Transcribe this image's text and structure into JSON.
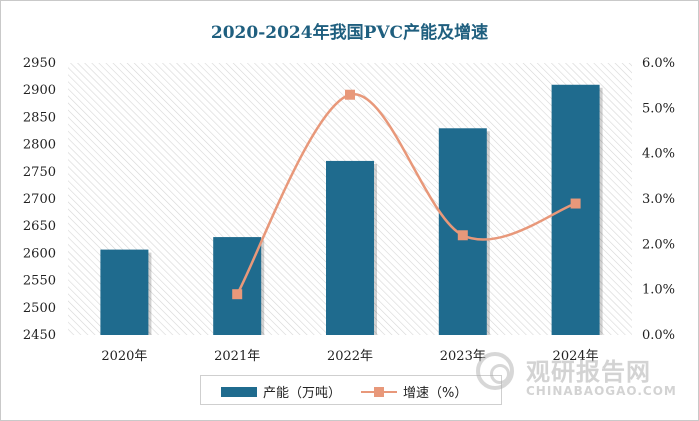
{
  "chart_data": {
    "type": "bar+line",
    "title": "2020-2024年我国PVC产能及增速",
    "categories": [
      "2020年",
      "2021年",
      "2022年",
      "2023年",
      "2024年"
    ],
    "series": [
      {
        "name": "产能（万吨）",
        "type": "bar",
        "axis": "left",
        "color": "#1f6b8e",
        "values": [
          2607,
          2630,
          2770,
          2830,
          2910
        ]
      },
      {
        "name": "增速（%）",
        "type": "line",
        "axis": "right",
        "color": "#e8987a",
        "smooth": true,
        "values": [
          null,
          0.9,
          5.3,
          2.2,
          2.9
        ]
      }
    ],
    "y_left": {
      "min": 2450,
      "max": 2950,
      "step": 50,
      "ticks": [
        "2450",
        "2500",
        "2550",
        "2600",
        "2650",
        "2700",
        "2750",
        "2800",
        "2850",
        "2900",
        "2950"
      ]
    },
    "y_right": {
      "min": 0,
      "max": 6,
      "step": 1,
      "ticks": [
        "0.0%",
        "1.0%",
        "2.0%",
        "3.0%",
        "4.0%",
        "5.0%",
        "6.0%"
      ]
    },
    "plot_background": "diagonal-hatch",
    "legend_position": "bottom"
  },
  "watermark": {
    "text_cn": "观研报告网",
    "text_en": "CHINABAOGAO.COM"
  }
}
